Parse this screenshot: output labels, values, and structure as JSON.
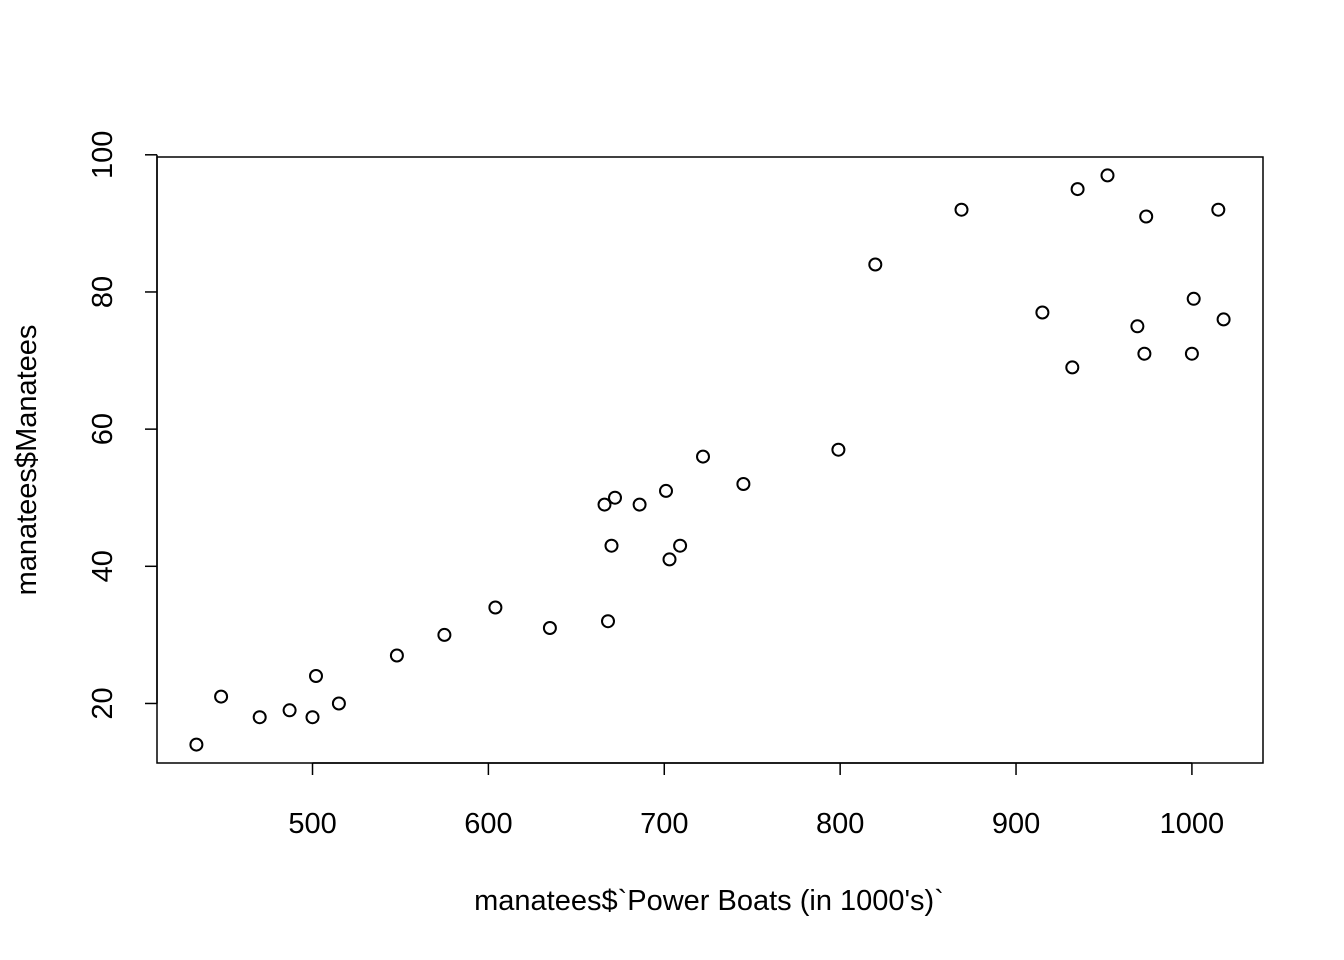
{
  "chart_data": {
    "type": "scatter",
    "title": "",
    "xlabel": "manatees$`Power Boats (in 1000's)`",
    "ylabel": "manatees$Manatees",
    "xlim": [
      411.58,
      1040.42
    ],
    "ylim": [
      11.32,
      99.68
    ],
    "x_ticks": [
      500,
      600,
      700,
      800,
      900,
      1000
    ],
    "y_ticks": [
      20,
      40,
      60,
      80,
      100
    ],
    "x_tick_labels": [
      "500",
      "600",
      "700",
      "800",
      "900",
      "1000"
    ],
    "y_tick_labels": [
      "20",
      "40",
      "60",
      "80",
      "100"
    ],
    "grid": false,
    "legend": "none",
    "point_color": "#000000",
    "points": [
      {
        "x": 434,
        "y": 14
      },
      {
        "x": 448,
        "y": 21
      },
      {
        "x": 470,
        "y": 18
      },
      {
        "x": 487,
        "y": 19
      },
      {
        "x": 500,
        "y": 18
      },
      {
        "x": 502,
        "y": 24
      },
      {
        "x": 515,
        "y": 20
      },
      {
        "x": 548,
        "y": 27
      },
      {
        "x": 575,
        "y": 30
      },
      {
        "x": 604,
        "y": 34
      },
      {
        "x": 635,
        "y": 31
      },
      {
        "x": 666,
        "y": 49
      },
      {
        "x": 668,
        "y": 32
      },
      {
        "x": 670,
        "y": 43
      },
      {
        "x": 672,
        "y": 50
      },
      {
        "x": 686,
        "y": 49
      },
      {
        "x": 701,
        "y": 51
      },
      {
        "x": 703,
        "y": 41
      },
      {
        "x": 709,
        "y": 43
      },
      {
        "x": 722,
        "y": 56
      },
      {
        "x": 745,
        "y": 52
      },
      {
        "x": 799,
        "y": 57
      },
      {
        "x": 820,
        "y": 84
      },
      {
        "x": 869,
        "y": 92
      },
      {
        "x": 915,
        "y": 77
      },
      {
        "x": 932,
        "y": 69
      },
      {
        "x": 935,
        "y": 95
      },
      {
        "x": 952,
        "y": 97
      },
      {
        "x": 969,
        "y": 75
      },
      {
        "x": 973,
        "y": 71
      },
      {
        "x": 974,
        "y": 91
      },
      {
        "x": 1000,
        "y": 71
      },
      {
        "x": 1001,
        "y": 79
      },
      {
        "x": 1015,
        "y": 92
      },
      {
        "x": 1018,
        "y": 76
      }
    ]
  }
}
